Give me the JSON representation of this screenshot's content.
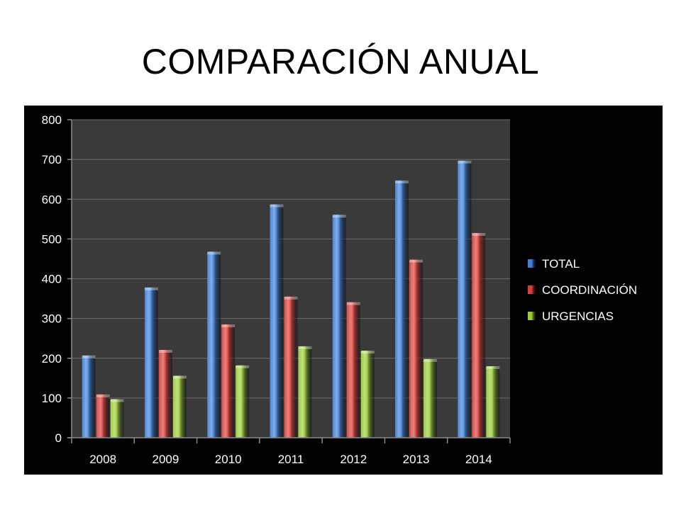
{
  "slide": {
    "title": "COMPARACIÓN ANUAL"
  },
  "colors": {
    "background": "#000000",
    "plot_area": "#3a3a3a",
    "gridline": "#6a6a6a",
    "text": "#ffffff"
  },
  "chart_data": {
    "type": "bar",
    "title": "",
    "xlabel": "",
    "ylabel": "",
    "categories": [
      "2008",
      "2009",
      "2010",
      "2011",
      "2012",
      "2013",
      "2014"
    ],
    "ylim": [
      0,
      800
    ],
    "yticks": [
      0,
      100,
      200,
      300,
      400,
      500,
      600,
      700,
      800
    ],
    "grid": true,
    "legend_position": "right",
    "series": [
      {
        "name": "TOTAL",
        "color": "#3f7fd6",
        "values": [
          207,
          378,
          468,
          587,
          561,
          647,
          697
        ]
      },
      {
        "name": "COORDINACIÓN",
        "color": "#d9403c",
        "values": [
          109,
          221,
          285,
          355,
          341,
          448,
          515
        ]
      },
      {
        "name": "URGENCIAS",
        "color": "#9ccc3c",
        "values": [
          97,
          156,
          182,
          230,
          219,
          198,
          180
        ]
      }
    ]
  }
}
